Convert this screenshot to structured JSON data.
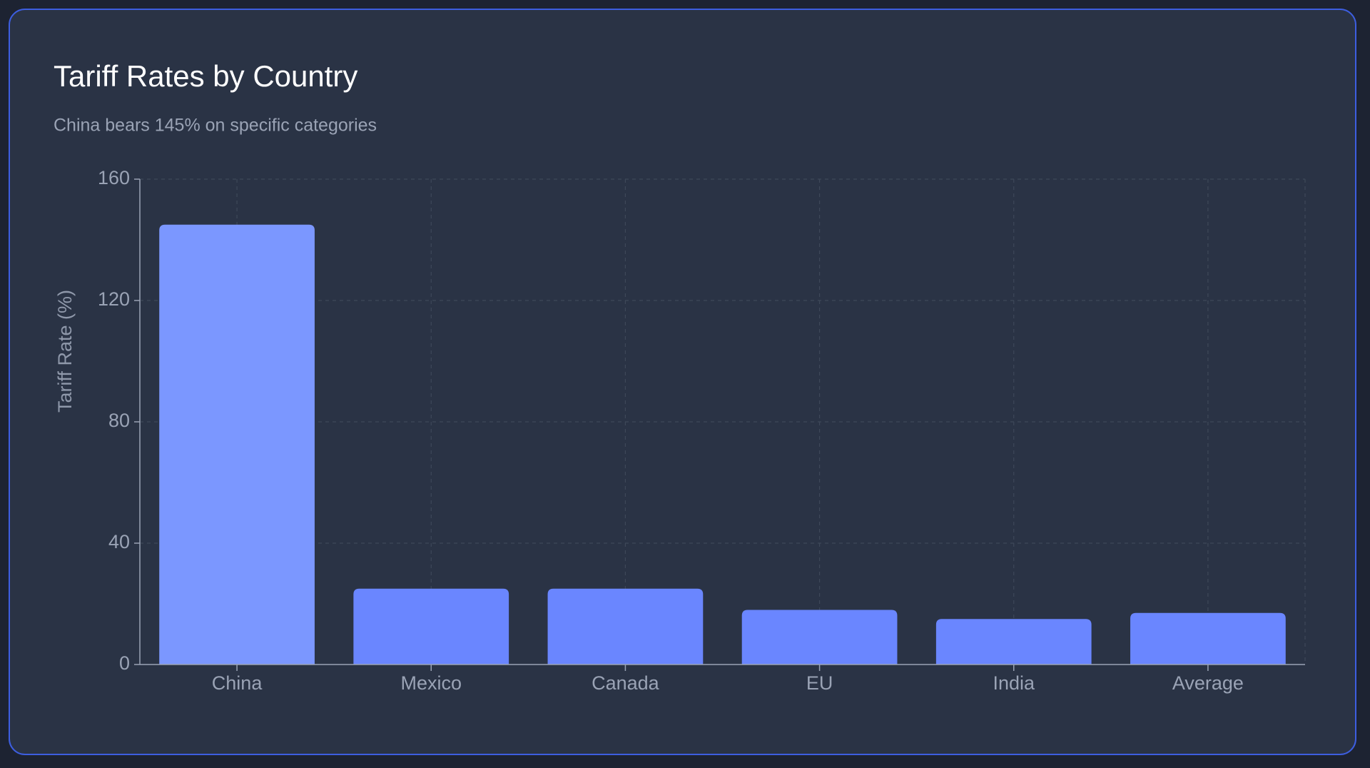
{
  "chart_data": {
    "type": "bar",
    "title": "Tariff Rates by Country",
    "subtitle": "China bears 145% on specific categories",
    "y_label": "Tariff Rate (%)",
    "categories": [
      "China",
      "Mexico",
      "Canada",
      "EU",
      "India",
      "Average"
    ],
    "values": [
      145,
      25,
      25,
      18,
      15,
      17
    ],
    "colors": [
      "#7b97ff",
      "#6a86ff",
      "#6a86ff",
      "#6a86ff",
      "#6a86ff",
      "#6a86ff"
    ],
    "ylim": [
      0,
      160
    ],
    "yticks": [
      0,
      40,
      80,
      120,
      160
    ],
    "grid": true
  }
}
